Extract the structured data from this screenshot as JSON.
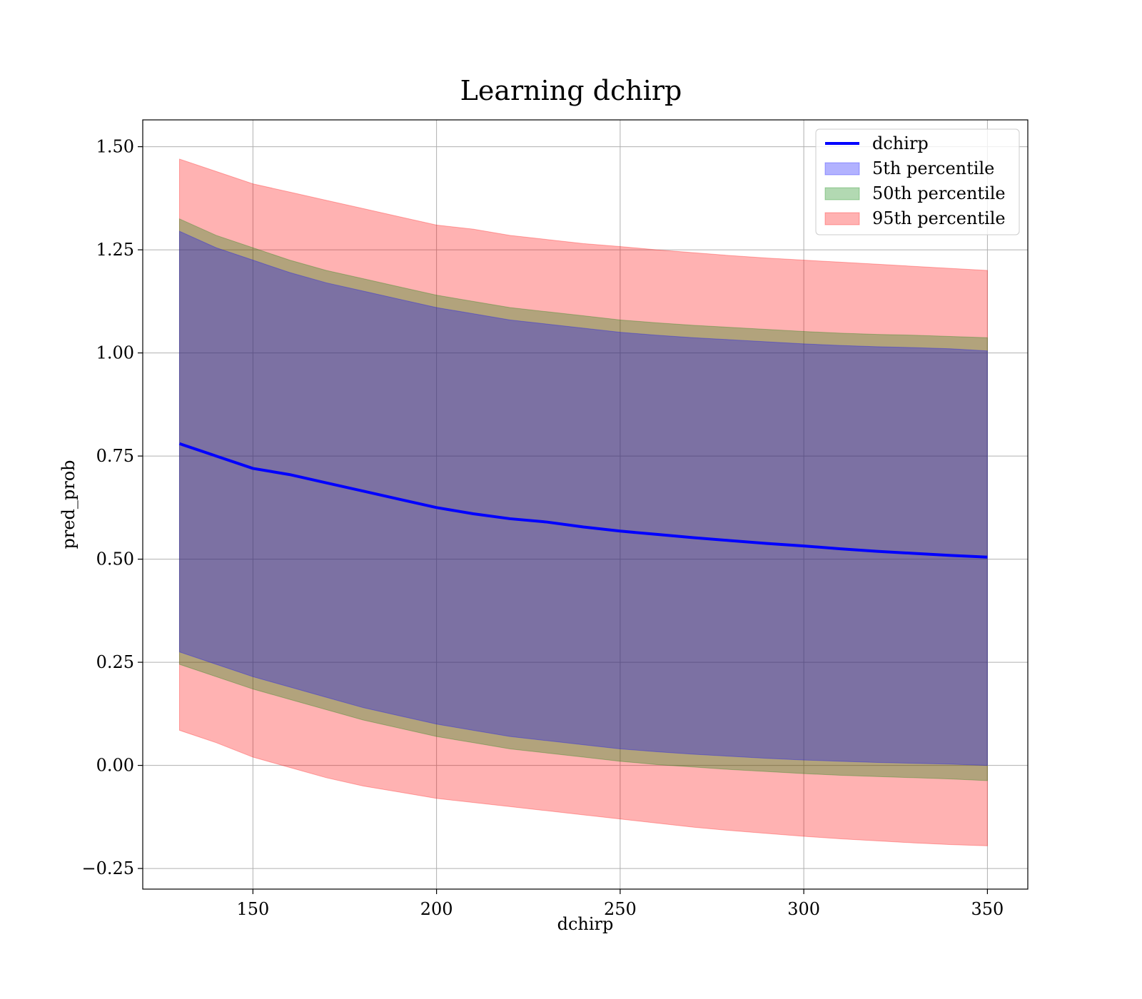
{
  "chart_data": {
    "type": "area",
    "title": "Learning dchirp",
    "xlabel": "dchirp",
    "ylabel": "pred_prob",
    "xlim": [
      120,
      361
    ],
    "ylim": [
      -0.3,
      1.565
    ],
    "xticks": [
      150,
      200,
      250,
      300,
      350
    ],
    "yticks": [
      -0.25,
      0.0,
      0.25,
      0.5,
      0.75,
      1.0,
      1.25,
      1.5
    ],
    "xtick_labels": [
      "150",
      "200",
      "250",
      "300",
      "350"
    ],
    "ytick_labels": [
      "−0.25",
      "0.00",
      "0.25",
      "0.50",
      "0.75",
      "1.00",
      "1.25",
      "1.50"
    ],
    "grid": true,
    "legend_position": "top-right",
    "x": [
      130,
      140,
      150,
      160,
      170,
      180,
      190,
      200,
      210,
      220,
      230,
      240,
      250,
      260,
      270,
      280,
      290,
      300,
      310,
      320,
      330,
      340,
      350
    ],
    "series": [
      {
        "name": "dchirp",
        "kind": "line",
        "color": "#0000ff",
        "values": [
          0.78,
          0.75,
          0.72,
          0.705,
          0.685,
          0.665,
          0.645,
          0.625,
          0.61,
          0.598,
          0.59,
          0.578,
          0.568,
          0.56,
          0.552,
          0.545,
          0.538,
          0.532,
          0.525,
          0.519,
          0.514,
          0.509,
          0.505
        ]
      },
      {
        "name": "5th percentile",
        "kind": "band",
        "color": "#0000ff",
        "lower": [
          0.275,
          0.245,
          0.215,
          0.19,
          0.165,
          0.14,
          0.12,
          0.1,
          0.085,
          0.07,
          0.06,
          0.05,
          0.04,
          0.033,
          0.027,
          0.022,
          0.017,
          0.013,
          0.01,
          0.007,
          0.005,
          0.003,
          0.0
        ],
        "upper": [
          1.295,
          1.255,
          1.225,
          1.195,
          1.17,
          1.15,
          1.13,
          1.11,
          1.095,
          1.08,
          1.07,
          1.06,
          1.05,
          1.043,
          1.037,
          1.032,
          1.027,
          1.022,
          1.018,
          1.015,
          1.013,
          1.01,
          1.005
        ]
      },
      {
        "name": "50th percentile",
        "kind": "band",
        "color": "#008000",
        "lower": [
          0.245,
          0.215,
          0.185,
          0.16,
          0.135,
          0.11,
          0.09,
          0.07,
          0.055,
          0.04,
          0.03,
          0.02,
          0.01,
          0.002,
          -0.004,
          -0.01,
          -0.015,
          -0.02,
          -0.024,
          -0.027,
          -0.03,
          -0.033,
          -0.037
        ],
        "upper": [
          1.325,
          1.285,
          1.255,
          1.225,
          1.2,
          1.18,
          1.16,
          1.14,
          1.125,
          1.11,
          1.1,
          1.09,
          1.08,
          1.073,
          1.067,
          1.062,
          1.057,
          1.052,
          1.048,
          1.045,
          1.043,
          1.04,
          1.037
        ]
      },
      {
        "name": "95th percentile",
        "kind": "band",
        "color": "#ff0000",
        "lower": [
          0.085,
          0.055,
          0.02,
          -0.005,
          -0.03,
          -0.05,
          -0.065,
          -0.08,
          -0.09,
          -0.1,
          -0.11,
          -0.12,
          -0.13,
          -0.14,
          -0.15,
          -0.158,
          -0.165,
          -0.172,
          -0.178,
          -0.183,
          -0.188,
          -0.192,
          -0.195
        ],
        "upper": [
          1.47,
          1.44,
          1.41,
          1.39,
          1.37,
          1.35,
          1.33,
          1.31,
          1.3,
          1.285,
          1.275,
          1.265,
          1.258,
          1.25,
          1.243,
          1.236,
          1.23,
          1.225,
          1.22,
          1.215,
          1.21,
          1.205,
          1.2
        ]
      }
    ]
  }
}
